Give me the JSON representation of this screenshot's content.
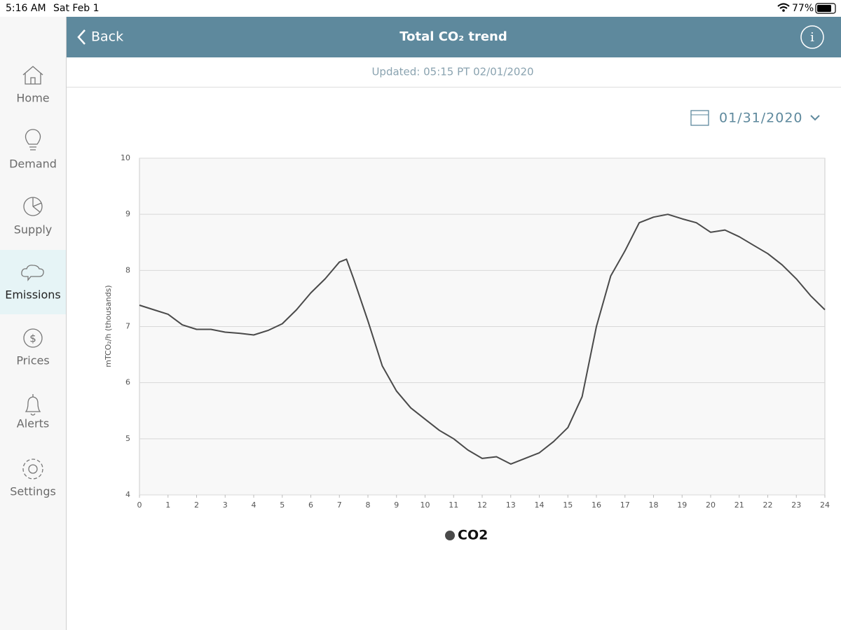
{
  "status_bar": {
    "time": "5:16 AM",
    "date": "Sat Feb 1",
    "battery": "77%"
  },
  "header": {
    "back": "Back",
    "title": "Total CO₂ trend"
  },
  "updated": "Updated: 05:15 PT 02/01/2020",
  "date_picker": "01/31/2020",
  "nav": [
    "Home",
    "Demand",
    "Supply",
    "Emissions",
    "Prices",
    "Alerts",
    "Settings"
  ],
  "chart_data": {
    "type": "line",
    "ylabel": "mTCO₂/h (thousands)",
    "x": [
      0,
      0.5,
      1,
      1.5,
      2,
      2.5,
      3,
      3.5,
      4,
      4.5,
      5,
      5.5,
      6,
      6.5,
      7,
      7.25,
      7.5,
      8,
      8.5,
      9,
      9.5,
      10,
      10.5,
      11,
      11.5,
      12,
      12.5,
      13,
      13.5,
      14,
      14.5,
      15,
      15.5,
      16,
      16.5,
      17,
      17.5,
      18,
      18.5,
      19,
      19.5,
      20,
      20.5,
      21,
      21.5,
      22,
      22.5,
      23,
      23.5,
      24
    ],
    "series": [
      {
        "name": "CO2",
        "color": "#4a4a4a",
        "values": [
          7.38,
          7.3,
          7.22,
          7.03,
          6.95,
          6.95,
          6.9,
          6.88,
          6.85,
          6.93,
          7.05,
          7.3,
          7.6,
          7.85,
          8.15,
          8.2,
          7.85,
          7.1,
          6.3,
          5.85,
          5.55,
          5.35,
          5.15,
          5.0,
          4.8,
          4.65,
          4.68,
          4.55,
          4.65,
          4.75,
          4.95,
          5.2,
          5.75,
          7.0,
          7.9,
          8.35,
          8.85,
          8.95,
          9.0,
          8.92,
          8.85,
          8.68,
          8.72,
          8.6,
          8.45,
          8.3,
          8.1,
          7.85,
          7.55,
          7.3
        ]
      }
    ],
    "xlim": [
      0,
      24
    ],
    "xticks": [
      0,
      1,
      2,
      3,
      4,
      5,
      6,
      7,
      8,
      9,
      10,
      11,
      12,
      13,
      14,
      15,
      16,
      17,
      18,
      19,
      20,
      21,
      22,
      23,
      24
    ],
    "ylim": [
      4,
      10
    ],
    "yticks": [
      4,
      5,
      6,
      7,
      8,
      9,
      10
    ],
    "grid": true
  }
}
